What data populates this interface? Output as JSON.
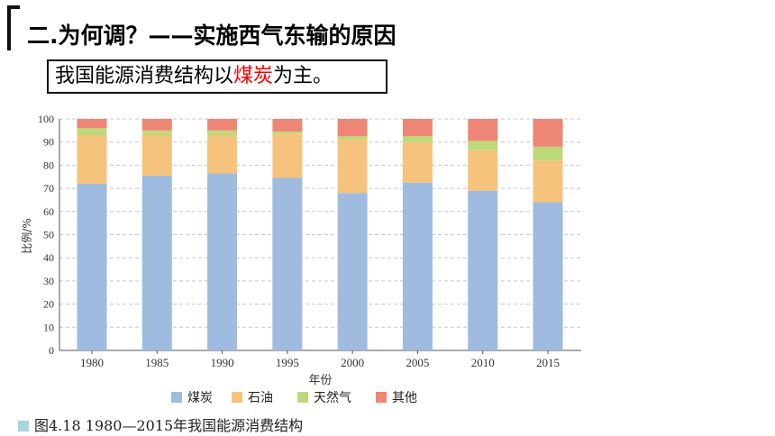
{
  "heading": {
    "title": "二.为何调？——实施西气东输的原因",
    "subtitle_prefix": "我国能源消费结构以",
    "subtitle_highlight": "煤炭",
    "subtitle_suffix": "为主。",
    "highlight_color": "#ff0000"
  },
  "caption": "图4.18   1980—2015年我国能源消费结构",
  "chart_data": {
    "type": "bar",
    "stacked": true,
    "categories": [
      "1980",
      "1985",
      "1990",
      "1995",
      "2000",
      "2005",
      "2010",
      "2015"
    ],
    "series": [
      {
        "name": "煤炭",
        "color": "#9fbbe0",
        "values": [
          72,
          75.5,
          76.5,
          74.5,
          68,
          72.5,
          69,
          64
        ]
      },
      {
        "name": "石油",
        "color": "#f6c37c",
        "values": [
          21,
          17.5,
          16.5,
          19,
          23,
          17.5,
          17.5,
          18
        ]
      },
      {
        "name": "天然气",
        "color": "#bed97a",
        "values": [
          3,
          2,
          2,
          1,
          1.5,
          2.5,
          4,
          6
        ]
      },
      {
        "name": "其他",
        "color": "#ee8675",
        "values": [
          4,
          5,
          5,
          5.5,
          7.5,
          7.5,
          9.5,
          12
        ]
      }
    ],
    "xlabel": "年份",
    "ylabel": "比例/%",
    "ylim": [
      0,
      100
    ],
    "yticks": [
      0,
      10,
      20,
      30,
      40,
      50,
      60,
      70,
      80,
      90,
      100
    ],
    "grid": true,
    "legend": "bottom"
  }
}
